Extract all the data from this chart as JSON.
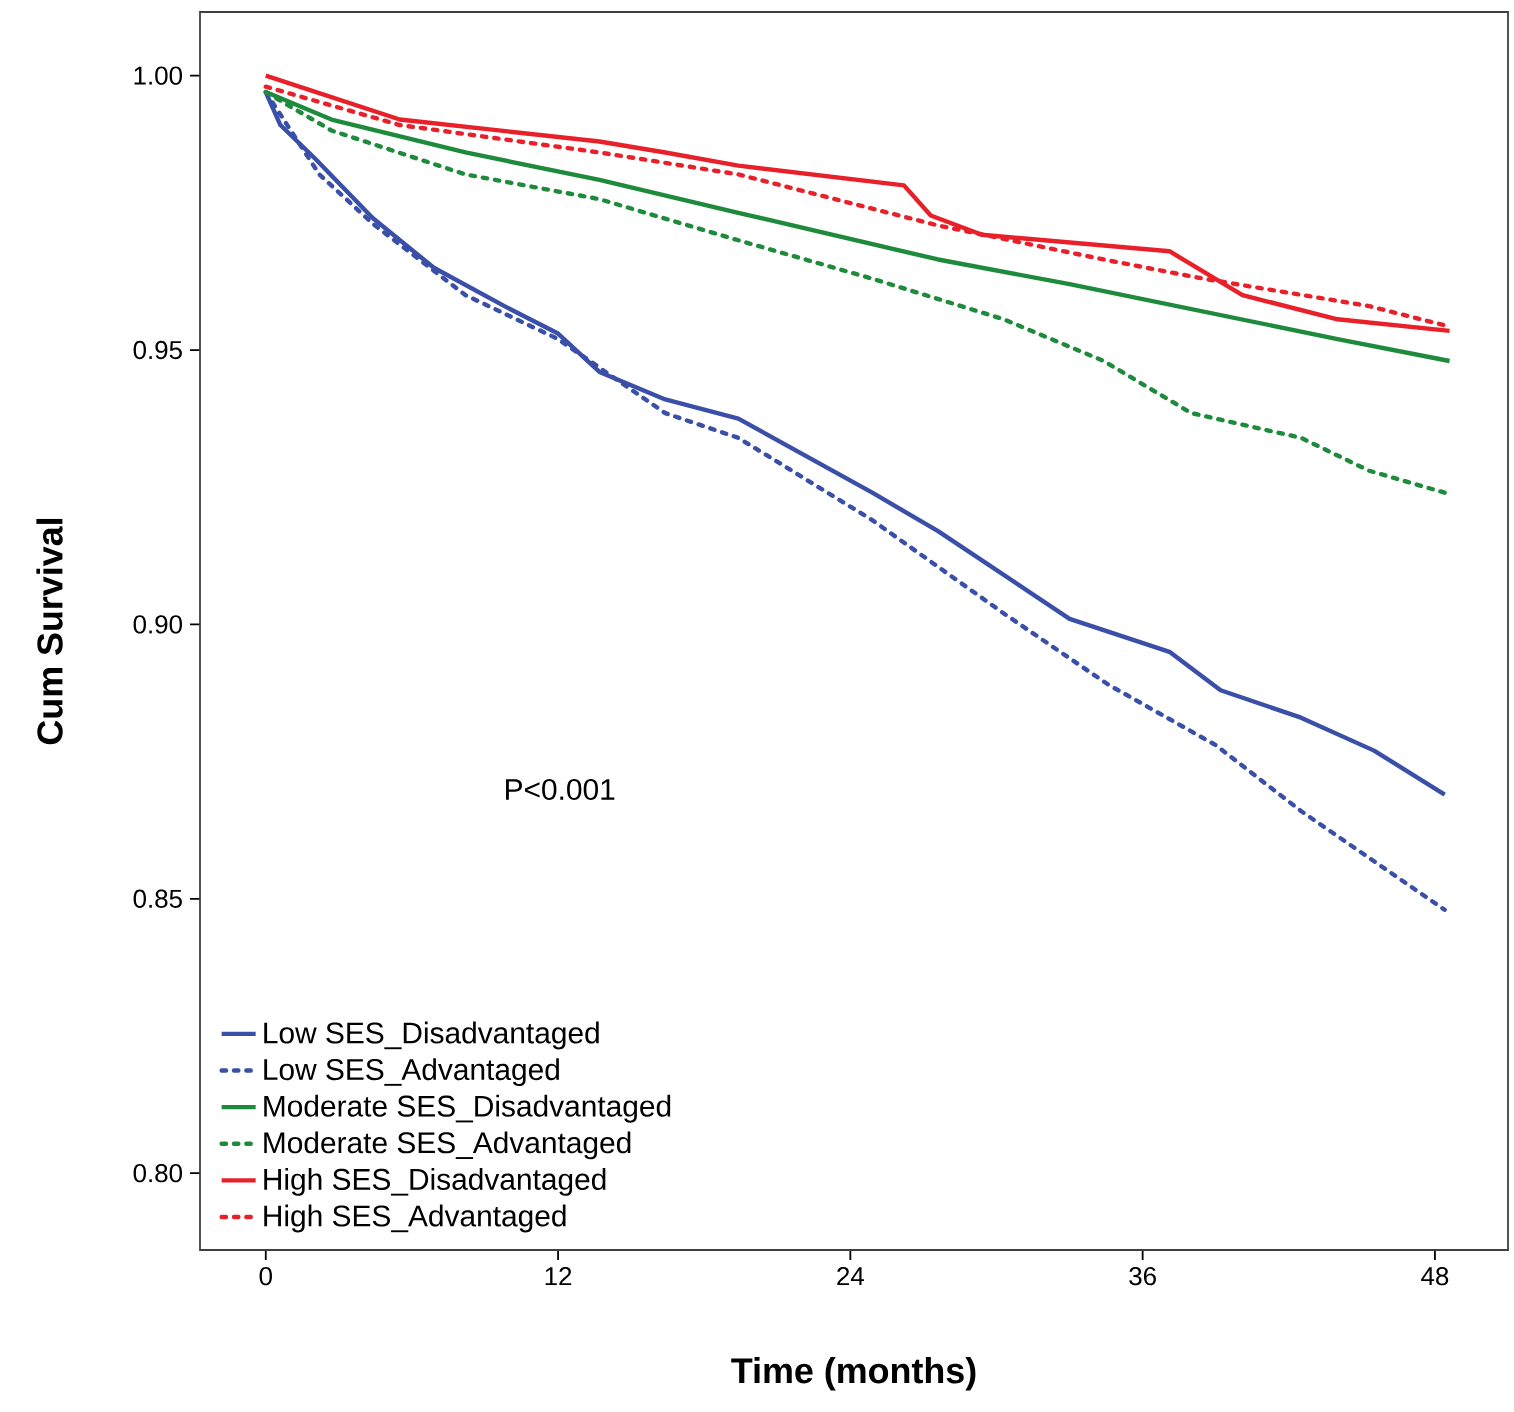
{
  "chart_data": {
    "type": "line",
    "xlabel": "Time (months)",
    "ylabel": "Cum Survival",
    "annotations": [
      "P<0.001"
    ],
    "xlim": [
      -2.7,
      51
    ],
    "ylim": [
      0.786,
      1.0116
    ],
    "xticks": [
      0,
      12,
      24,
      36,
      48
    ],
    "yticks": [
      {
        "value": 0.8,
        "label": "0.80"
      },
      {
        "value": 0.85,
        "label": "0.85"
      },
      {
        "value": 0.9,
        "label": "0.90"
      },
      {
        "value": 0.95,
        "label": "0.95"
      },
      {
        "value": 1.0,
        "label": "1.00"
      }
    ],
    "grid": false,
    "legend": "bottom left",
    "marker": "none",
    "series": [
      {
        "name": "Low SES_Disadvantaged",
        "color": "#3a4fa8",
        "line_style": "solid",
        "x": [
          0,
          0.6,
          2.0,
          4.4,
          6.9,
          9.8,
          12,
          13.7,
          16.4,
          19.4,
          24.9,
          27.6,
          30.3,
          33,
          37.1,
          39.2,
          42.5,
          45.5,
          48.4
        ],
        "values": [
          0.997,
          0.991,
          0.985,
          0.974,
          0.965,
          0.958,
          0.953,
          0.946,
          0.941,
          0.9375,
          0.924,
          0.917,
          0.909,
          0.901,
          0.895,
          0.888,
          0.883,
          0.877,
          0.869
        ]
      },
      {
        "name": "Low SES_Advantaged",
        "color": "#3a4fa8",
        "line_style": "dotted",
        "x": [
          0,
          2.2,
          4.4,
          8.2,
          12,
          16.4,
          19.4,
          24.9,
          30.3,
          34.6,
          39,
          42.5,
          48.4
        ],
        "values": [
          0.997,
          0.982,
          0.973,
          0.96,
          0.952,
          0.9385,
          0.934,
          0.919,
          0.902,
          0.889,
          0.878,
          0.866,
          0.848
        ]
      },
      {
        "name": "Moderate SES_Disadvantaged",
        "color": "#1e8a3c",
        "line_style": "solid",
        "x": [
          0,
          2.7,
          8.2,
          13.7,
          19.4,
          27.6,
          33,
          38.5,
          44,
          48.6
        ],
        "values": [
          0.997,
          0.992,
          0.986,
          0.981,
          0.975,
          0.9665,
          0.962,
          0.957,
          0.952,
          0.948
        ]
      },
      {
        "name": "Moderate SES_Advantaged",
        "color": "#1e8a3c",
        "line_style": "dotted",
        "x": [
          0,
          2.7,
          8.2,
          13.7,
          19.4,
          24.9,
          30.3,
          34.4,
          38,
          42.5,
          45.3,
          48.4
        ],
        "values": [
          0.997,
          0.99,
          0.982,
          0.9775,
          0.97,
          0.963,
          0.9556,
          0.948,
          0.9385,
          0.934,
          0.928,
          0.924
        ]
      },
      {
        "name": "High SES_Disadvantaged",
        "color": "#e8202a",
        "line_style": "solid",
        "x": [
          0,
          5.5,
          13.7,
          16.4,
          19.4,
          26.2,
          27.3,
          29.4,
          37.1,
          40.1,
          44,
          48.6
        ],
        "values": [
          1.0,
          0.992,
          0.988,
          0.986,
          0.9836,
          0.98,
          0.9745,
          0.971,
          0.968,
          0.96,
          0.9556,
          0.9535
        ]
      },
      {
        "name": "High SES_Advantaged",
        "color": "#e8202a",
        "line_style": "dotted",
        "x": [
          0,
          5.5,
          13.7,
          19.4,
          27.6,
          34.4,
          38.5,
          45.3,
          48.4
        ],
        "values": [
          0.998,
          0.991,
          0.986,
          0.982,
          0.9727,
          0.9665,
          0.963,
          0.958,
          0.9545
        ]
      }
    ]
  }
}
